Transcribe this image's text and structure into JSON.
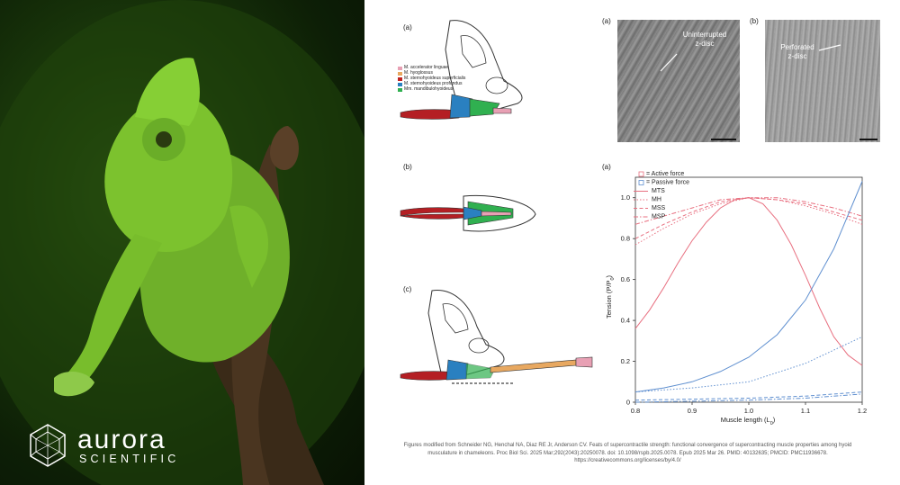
{
  "brand": {
    "name": "aurora",
    "subtitle": "SCIENTIFIC"
  },
  "panel_labels": {
    "a": "(a)",
    "b": "(b)",
    "c": "(c)"
  },
  "muscle_legend": [
    {
      "label": "M. accelerator linguae",
      "color": "#e8a0b4"
    },
    {
      "label": "M. hyoglossus",
      "color": "#e8a860"
    },
    {
      "label": "M. sternohyoideus superficialis",
      "color": "#c02020"
    },
    {
      "label": "M. sternohyoideus profundus",
      "color": "#2a80c0"
    },
    {
      "label": "Mm. mandibulohyoideus",
      "color": "#30b050"
    }
  ],
  "micrographs": {
    "a": {
      "label": "(a)",
      "annotation": "Uninterrupted\nz-disc"
    },
    "b": {
      "label": "(b)",
      "annotation": "Perforated\nz-disc"
    }
  },
  "chart_data": {
    "type": "line",
    "panel_label": "(a)",
    "xlabel": "Muscle length (L",
    "xlabel_sub": "0",
    "xlabel_close": ")",
    "ylabel": "Tension (P/P",
    "ylabel_sub": "0",
    "ylabel_close": ")",
    "xlim": [
      0.8,
      1.2
    ],
    "ylim": [
      0,
      1.1
    ],
    "xticks": [
      "0.8",
      "0.9",
      "1.0",
      "1.1",
      "1.2"
    ],
    "yticks": [
      "0",
      "0.2",
      "0.4",
      "0.6",
      "0.8",
      "1.0"
    ],
    "legend": [
      {
        "label": "= Active force",
        "marker": "square",
        "color": "#e87080"
      },
      {
        "label": "= Passive force",
        "marker": "square",
        "color": "#6090d0"
      },
      {
        "label": "MTS",
        "dash": "solid"
      },
      {
        "label": "MH",
        "dash": "dotted"
      },
      {
        "label": "MSS",
        "dash": "dashed"
      },
      {
        "label": "MSP",
        "dash": "dashdot"
      }
    ],
    "series": [
      {
        "name": "MTS",
        "kind": "active",
        "color": "#e87080",
        "dash": "solid",
        "x": [
          0.8,
          0.825,
          0.85,
          0.875,
          0.9,
          0.925,
          0.95,
          0.975,
          1.0,
          1.025,
          1.05,
          1.075,
          1.1,
          1.125,
          1.15,
          1.175,
          1.2
        ],
        "y": [
          0.36,
          0.45,
          0.56,
          0.68,
          0.79,
          0.88,
          0.95,
          0.99,
          1.0,
          0.97,
          0.89,
          0.77,
          0.62,
          0.46,
          0.32,
          0.23,
          0.18
        ]
      },
      {
        "name": "MH",
        "kind": "active",
        "color": "#e87080",
        "dash": "dotted",
        "x": [
          0.8,
          0.85,
          0.9,
          0.95,
          1.0,
          1.05,
          1.1,
          1.15,
          1.2
        ],
        "y": [
          0.77,
          0.85,
          0.92,
          0.97,
          1.0,
          0.99,
          0.96,
          0.92,
          0.87
        ]
      },
      {
        "name": "MSS",
        "kind": "active",
        "color": "#e87080",
        "dash": "dashed",
        "x": [
          0.8,
          0.85,
          0.9,
          0.95,
          1.0,
          1.05,
          1.1,
          1.15,
          1.2
        ],
        "y": [
          0.8,
          0.87,
          0.93,
          0.98,
          1.0,
          0.99,
          0.97,
          0.93,
          0.89
        ]
      },
      {
        "name": "MSP",
        "kind": "active",
        "color": "#e87080",
        "dash": "dashdot",
        "x": [
          0.8,
          0.85,
          0.9,
          0.95,
          1.0,
          1.05,
          1.1,
          1.15,
          1.2
        ],
        "y": [
          0.87,
          0.91,
          0.95,
          0.99,
          1.0,
          1.0,
          0.98,
          0.95,
          0.91
        ]
      },
      {
        "name": "MTS",
        "kind": "passive",
        "color": "#6090d0",
        "dash": "solid",
        "x": [
          0.8,
          0.85,
          0.9,
          0.95,
          1.0,
          1.05,
          1.1,
          1.15,
          1.2
        ],
        "y": [
          0.05,
          0.07,
          0.1,
          0.15,
          0.22,
          0.33,
          0.5,
          0.75,
          1.08
        ]
      },
      {
        "name": "MH",
        "kind": "passive",
        "color": "#6090d0",
        "dash": "dotted",
        "x": [
          0.8,
          0.9,
          1.0,
          1.1,
          1.2
        ],
        "y": [
          0.05,
          0.07,
          0.1,
          0.19,
          0.32
        ]
      },
      {
        "name": "MSS",
        "kind": "passive",
        "color": "#6090d0",
        "dash": "dashed",
        "x": [
          0.8,
          0.9,
          1.0,
          1.1,
          1.2
        ],
        "y": [
          0.01,
          0.015,
          0.02,
          0.03,
          0.05
        ]
      },
      {
        "name": "MSP",
        "kind": "passive",
        "color": "#6090d0",
        "dash": "dashdot",
        "x": [
          0.8,
          0.9,
          1.0,
          1.1,
          1.2
        ],
        "y": [
          0.0,
          0.005,
          0.01,
          0.02,
          0.04
        ]
      }
    ]
  },
  "caption": {
    "line1": "Figures modified from Schneider NG, Henchal NA, Diaz RE Jr, Anderson CV. Feats of supercontractile strength: functional convergence of supercontracting muscle properties among hyoid",
    "line2": "musculature in chameleons. Proc Biol Sci. 2025 Mar;292(2043):20250078. doi: 10.1098/rspb.2025.0078. Epub 2025 Mar 26. PMID: 40132635; PMCID: PMC11936678.",
    "line3": "https://creativecommons.org/licenses/by/4.0/"
  }
}
